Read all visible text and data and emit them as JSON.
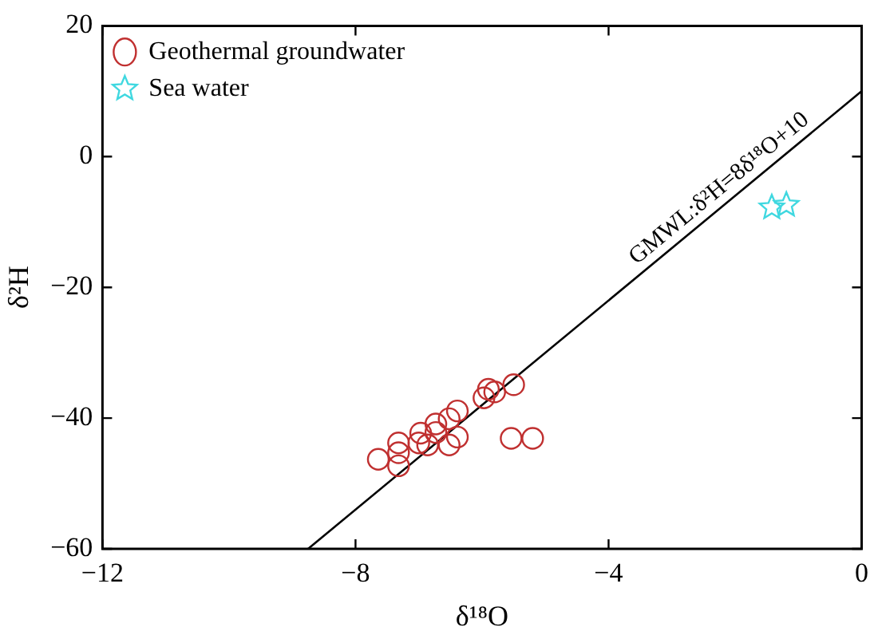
{
  "chart_data": {
    "type": "scatter",
    "xlabel": "δ¹⁸O",
    "ylabel": "δ²H",
    "xlim": [
      -12,
      0
    ],
    "xticks": [
      -12,
      -8,
      -4,
      0
    ],
    "ylim": [
      -60,
      20
    ],
    "yticks": [
      -60,
      -40,
      -20,
      0,
      20
    ],
    "grid": false,
    "legend": "top left",
    "series": [
      {
        "name": "Geothermal groundwater",
        "marker": "circle",
        "color": "#c03030",
        "x": [
          -7.64,
          -7.32,
          -7.32,
          -7.32,
          -7.0,
          -6.97,
          -6.86,
          -6.73,
          -6.73,
          -6.52,
          -6.52,
          -6.39,
          -6.39,
          -5.97,
          -5.9,
          -5.8,
          -5.5,
          -5.54,
          -5.2
        ],
        "values": [
          -46.3,
          -47.3,
          -45.3,
          -43.8,
          -43.8,
          -42.3,
          -44.1,
          -40.9,
          -42.2,
          -40.1,
          -44.1,
          -42.9,
          -38.9,
          -36.9,
          -35.6,
          -36.0,
          -34.9,
          -43.1,
          -43.1
        ]
      },
      {
        "name": "Sea water",
        "marker": "star",
        "color": "#40d8e0",
        "x": [
          -1.42,
          -1.19
        ],
        "values": [
          -7.8,
          -7.4
        ]
      },
      {
        "type": "line",
        "marker": "none",
        "color": "#000000",
        "x": [
          -8.75,
          0
        ],
        "values": [
          -60,
          10
        ]
      }
    ],
    "annotations": [
      "GMWL:δ²H=8δ¹⁸O+10"
    ]
  }
}
